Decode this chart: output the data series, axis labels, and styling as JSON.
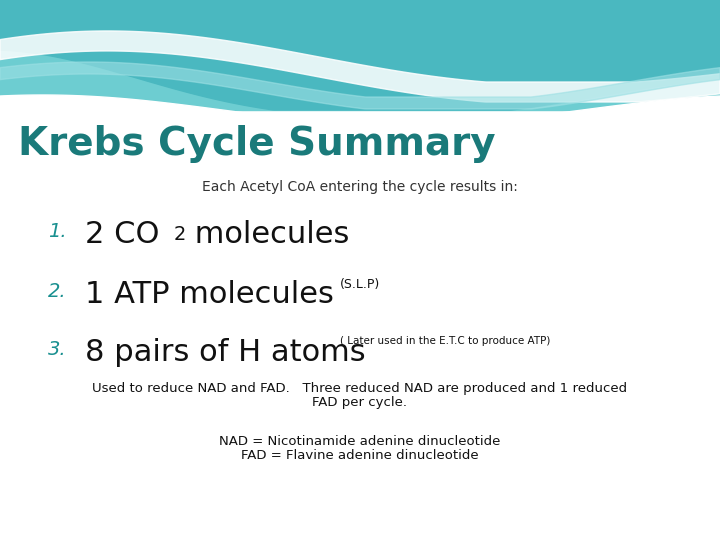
{
  "title": "Krebs Cycle Summary",
  "title_color": "#1a7a7a",
  "subtitle": "Each Acetyl CoA entering the cycle results in:",
  "subtitle_color": "#333333",
  "item1_number": "1.",
  "item2_number": "2.",
  "item3_number": "3.",
  "item2_small": "(S.L.P)",
  "item3_small": "( Later used in the E.T.C to produce ATP)",
  "note1": "Used to reduce NAD and FAD.   Three reduced NAD are produced and 1 reduced",
  "note2": "FAD per cycle.",
  "note3": "NAD = Nicotinamide adenine dinucleotide",
  "note4": "FAD = Flavine adenine dinucleotide",
  "number_color": "#1a9090",
  "text_color": "#111111",
  "wave_color1": "#5abfc5",
  "wave_color2": "#7dd5d8",
  "wave_color3": "#a8e8ea"
}
